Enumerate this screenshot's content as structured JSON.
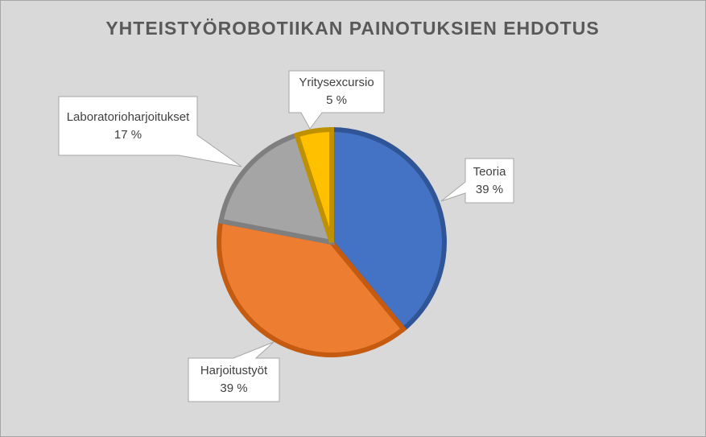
{
  "chart_data": {
    "type": "pie",
    "title": "YHTEISTYÖROBOTIIKAN PAINOTUKSIEN EHDOTUS",
    "categories": [
      "Teoria",
      "Harjoitustyöt",
      "Laboratorioharjoitukset",
      "Yritysexcursio"
    ],
    "values": [
      39,
      39,
      17,
      5
    ],
    "value_labels": [
      "39 %",
      "39 %",
      "17 %",
      "5 %"
    ],
    "colors": [
      "#4472c4",
      "#ed7d31",
      "#a5a5a5",
      "#ffc000"
    ],
    "edge_colors": [
      "#2f5597",
      "#c55a11",
      "#7f7f7f",
      "#bf9000"
    ]
  }
}
